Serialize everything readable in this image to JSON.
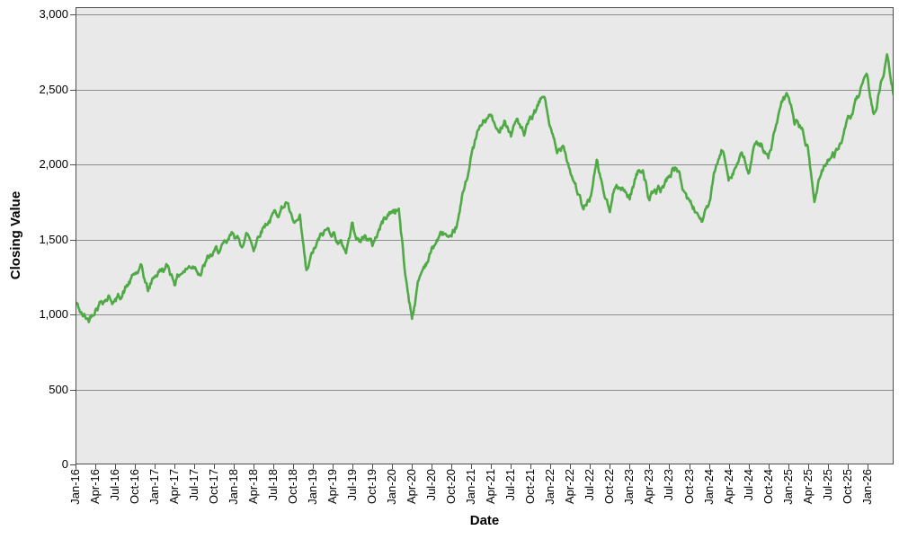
{
  "chart_data": {
    "type": "line",
    "title": "",
    "xlabel": "Date",
    "ylabel": "Closing Value",
    "legend": "none",
    "grid": "horizontal-only",
    "plot_background": "#e9e9e9",
    "grid_color": "#8c8c8c",
    "border_color": "#4d4d4d",
    "ylim": [
      0,
      3050
    ],
    "y_ticks": [
      0,
      500,
      1000,
      1500,
      2000,
      2500,
      3000
    ],
    "y_tick_labels": [
      "0",
      "500",
      "1,000",
      "1,500",
      "2,000",
      "2,500",
      "3,000"
    ],
    "x_tick_labels": [
      "Jan-16",
      "Apr-16",
      "Jul-16",
      "Oct-16",
      "Jan-17",
      "Apr-17",
      "Jul-17",
      "Oct-17",
      "Jan-18",
      "Apr-18",
      "Jul-18",
      "Oct-18",
      "Jan-19",
      "Apr-19",
      "Jul-19",
      "Oct-19",
      "Jan-20",
      "Apr-20",
      "Jul-20",
      "Oct-20",
      "Jan-21",
      "Apr-21",
      "Jul-21",
      "Oct-21",
      "Jan-22",
      "Apr-22",
      "Jul-22",
      "Oct-22",
      "Jan-23",
      "Apr-23",
      "Jul-23",
      "Oct-23",
      "Jan-24",
      "Apr-24",
      "Jul-24",
      "Oct-24",
      "Jan-25",
      "Apr-25",
      "Jul-25",
      "Oct-25",
      "Jan-26"
    ],
    "x_tick_interval_months": 3,
    "series": [
      {
        "name": "Closing Value",
        "color": "#4faa45",
        "frequency": "monthly",
        "start_month": "2016-01",
        "end_month": "2026-05",
        "monthly_values": [
          1080,
          990,
          960,
          1060,
          1110,
          1130,
          1090,
          1140,
          1200,
          1260,
          1290,
          1150,
          1260,
          1300,
          1310,
          1230,
          1290,
          1310,
          1340,
          1300,
          1360,
          1400,
          1430,
          1450,
          1540,
          1460,
          1540,
          1450,
          1570,
          1630,
          1660,
          1700,
          1760,
          1580,
          1610,
          1250,
          1400,
          1490,
          1550,
          1560,
          1480,
          1430,
          1610,
          1490,
          1530,
          1460,
          1570,
          1650,
          1690,
          1710,
          1250,
          990,
          1230,
          1340,
          1430,
          1510,
          1540,
          1450,
          1600,
          1850,
          2060,
          2210,
          2280,
          2320,
          2190,
          2320,
          2210,
          2310,
          2180,
          2280,
          2360,
          2460,
          2240,
          2050,
          2150,
          1980,
          1850,
          1680,
          1780,
          2000,
          1820,
          1670,
          1900,
          1830,
          1790,
          1930,
          1990,
          1770,
          1810,
          1840,
          1930,
          1990,
          1850,
          1750,
          1690,
          1630,
          1720,
          1950,
          2080,
          1930,
          2000,
          2060,
          1940,
          2100,
          2160,
          2030,
          2220,
          2380,
          2440,
          2280,
          2250,
          2100,
          1750,
          1950,
          2050,
          2060,
          2160,
          2260,
          2360,
          2480,
          2540,
          2330,
          2520,
          2700,
          2460
        ]
      }
    ],
    "daily_volatility_band": 40,
    "noise_seed": 42
  }
}
